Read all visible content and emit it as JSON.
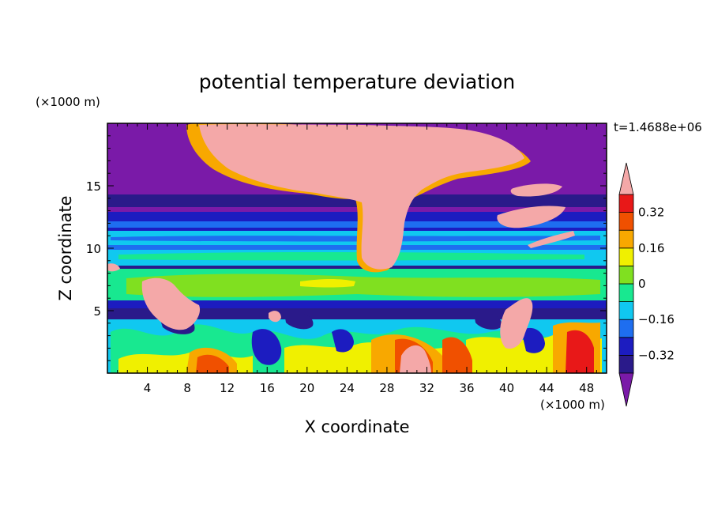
{
  "chart_data": {
    "type": "heatmap",
    "title": "potential temperature deviation",
    "xlabel": "X coordinate",
    "ylabel": "Z coordinate",
    "x_unit": "(×1000 m)",
    "y_unit": "(×1000 m)",
    "time_label": "t=1.4688e+06",
    "xlim": [
      0,
      50
    ],
    "ylim": [
      0,
      20
    ],
    "x_ticks": [
      4,
      8,
      12,
      16,
      20,
      24,
      28,
      32,
      36,
      40,
      44,
      48
    ],
    "y_ticks": [
      5,
      10,
      15
    ],
    "colorbar": {
      "levels": [
        -0.4,
        -0.32,
        -0.24,
        -0.16,
        -0.08,
        0,
        0.08,
        0.16,
        0.24,
        0.32,
        0.4
      ],
      "labeled_levels": [
        -0.32,
        -0.16,
        0,
        0.16,
        0.32
      ],
      "colors": [
        "#7a1aa8",
        "#2a1a8a",
        "#1c1cc0",
        "#1e6ef0",
        "#10c8f0",
        "#18e890",
        "#80e020",
        "#f0f000",
        "#f8a800",
        "#f05000",
        "#e81818",
        "#f4a8a8"
      ],
      "under_color": "#7a1aa8",
      "over_color": "#f4a8a8"
    },
    "bands": [
      {
        "z_range": [
          0,
          1.5
        ],
        "dominant": "0.08 to 0.32 (mixed green/yellow/red/blue)"
      },
      {
        "z_range": [
          1.5,
          5
        ],
        "dominant": "-0.24 to 0.4 (turbulent mixed layer)"
      },
      {
        "z_range": [
          5,
          6
        ],
        "dominant": "-0.32 (blue/purple)"
      },
      {
        "z_range": [
          6,
          9
        ],
        "dominant": "0 to 0.08 (green)"
      },
      {
        "z_range": [
          9,
          13
        ],
        "dominant": "-0.24 to -0.08 (blue/cyan)"
      },
      {
        "z_range": [
          13,
          15
        ],
        "dominant": "-0.4 (purple)"
      },
      {
        "z_range": [
          15,
          20
        ],
        "dominant": "-0.4 with plume >0.4"
      }
    ]
  }
}
